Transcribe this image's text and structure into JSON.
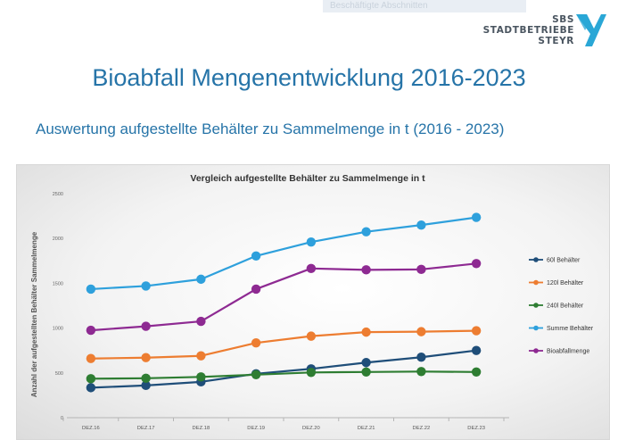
{
  "header": {
    "ghost_text": "Beschäftigte Abschnitten",
    "logo": {
      "line1": "SBS",
      "line2": "STADTBETRIEBE",
      "line3": "STEYR",
      "color": "#2aa7d6"
    }
  },
  "page": {
    "title": "Bioabfall Mengenentwicklung 2016-2023",
    "subtitle": "Auswertung aufgestellte Behälter zu Sammelmenge in t (2016 - 2023)"
  },
  "chart_data": {
    "type": "line",
    "title": "Vergleich aufgestellte Behälter zu Sammelmenge in t",
    "xlabel": "",
    "ylabel": "Anzahl der aufgestellten Behälter Sammelmenge",
    "categories": [
      "DEZ.16",
      "DEZ.17",
      "DEZ.18",
      "DEZ.19",
      "DEZ.20",
      "DEZ.21",
      "DEZ.22",
      "DEZ.23"
    ],
    "ylim": [
      0,
      2500
    ],
    "yticks": [
      0,
      500,
      1000,
      1500,
      2000,
      2500
    ],
    "grid": false,
    "legend": "right",
    "series": [
      {
        "name": "60l Behälter",
        "color": "#1f4e79",
        "values": [
          335,
          360,
          400,
          490,
          545,
          615,
          675,
          750
        ]
      },
      {
        "name": "120l Behälter",
        "color": "#ed7d31",
        "values": [
          660,
          670,
          690,
          835,
          910,
          955,
          960,
          970
        ]
      },
      {
        "name": "240l Behälter",
        "color": "#2e7d32",
        "values": [
          435,
          440,
          455,
          480,
          505,
          510,
          515,
          510
        ]
      },
      {
        "name": "Summe Behälter",
        "color": "#2ea0dc",
        "values": [
          1435,
          1470,
          1545,
          1805,
          1960,
          2075,
          2150,
          2235
        ]
      },
      {
        "name": "Bioabfallmenge",
        "color": "#8e2a92",
        "values": [
          975,
          1020,
          1075,
          1435,
          1665,
          1650,
          1655,
          1720
        ]
      }
    ]
  }
}
